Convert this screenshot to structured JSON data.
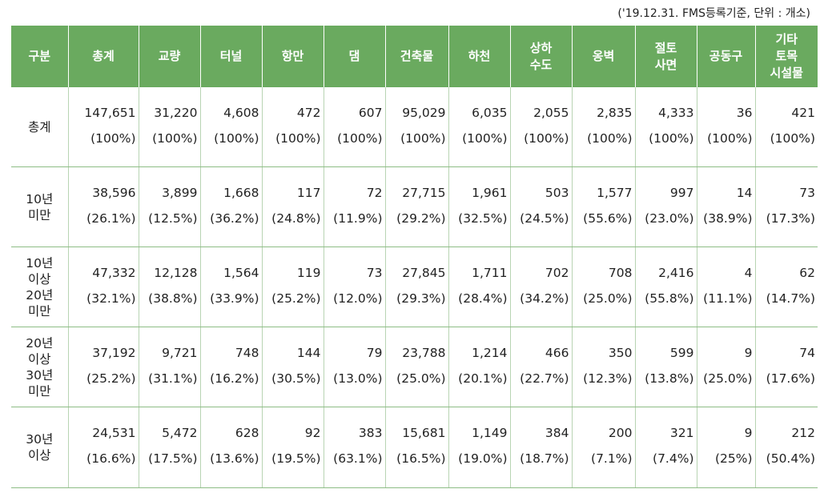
{
  "note": "('19.12.31. FMS등록기준, 단위 : 개소)",
  "headers": [
    "구분",
    "총계",
    "교량",
    "터널",
    "항만",
    "댐",
    "건축물",
    "하천",
    "상하\n수도",
    "옹벽",
    "절토\n사면",
    "공동구",
    "기타\n토목\n시설물"
  ],
  "rows": [
    {
      "label": "총계",
      "values": [
        "147,651",
        "31,220",
        "4,608",
        "472",
        "607",
        "95,029",
        "6,035",
        "2,055",
        "2,835",
        "4,333",
        "36",
        "421"
      ],
      "pcts": [
        "(100%)",
        "(100%)",
        "(100%)",
        "(100%)",
        "(100%)",
        "(100%)",
        "(100%)",
        "(100%)",
        "(100%)",
        "(100%)",
        "(100%)",
        "(100%)"
      ]
    },
    {
      "label": "10년\n미만",
      "values": [
        "38,596",
        "3,899",
        "1,668",
        "117",
        "72",
        "27,715",
        "1,961",
        "503",
        "1,577",
        "997",
        "14",
        "73"
      ],
      "pcts": [
        "(26.1%)",
        "(12.5%)",
        "(36.2%)",
        "(24.8%)",
        "(11.9%)",
        "(29.2%)",
        "(32.5%)",
        "(24.5%)",
        "(55.6%)",
        "(23.0%)",
        "(38.9%)",
        "(17.3%)"
      ]
    },
    {
      "label": "10년\n이상\n20년\n미만",
      "values": [
        "47,332",
        "12,128",
        "1,564",
        "119",
        "73",
        "27,845",
        "1,711",
        "702",
        "708",
        "2,416",
        "4",
        "62"
      ],
      "pcts": [
        "(32.1%)",
        "(38.8%)",
        "(33.9%)",
        "(25.2%)",
        "(12.0%)",
        "(29.3%)",
        "(28.4%)",
        "(34.2%)",
        "(25.0%)",
        "(55.8%)",
        "(11.1%)",
        "(14.7%)"
      ]
    },
    {
      "label": "20년\n이상\n30년\n미만",
      "values": [
        "37,192",
        "9,721",
        "748",
        "144",
        "79",
        "23,788",
        "1,214",
        "466",
        "350",
        "599",
        "9",
        "74"
      ],
      "pcts": [
        "(25.2%)",
        "(31.1%)",
        "(16.2%)",
        "(30.5%)",
        "(13.0%)",
        "(25.0%)",
        "(20.1%)",
        "(22.7%)",
        "(12.3%)",
        "(13.8%)",
        "(25.0%)",
        "(17.6%)"
      ]
    },
    {
      "label": "30년\n이상",
      "values": [
        "24,531",
        "5,472",
        "628",
        "92",
        "383",
        "15,681",
        "1,149",
        "384",
        "200",
        "321",
        "9",
        "212"
      ],
      "pcts": [
        "(16.6%)",
        "(17.5%)",
        "(13.6%)",
        "(19.5%)",
        "(63.1%)",
        "(16.5%)",
        "(19.0%)",
        "(18.7%)",
        "(7.1%)",
        "(7.4%)",
        "(25%)",
        "(50.4%)"
      ]
    }
  ],
  "colors": {
    "header_bg": "#6aaa5f",
    "header_text": "#ffffff",
    "row_border": "#8dbd85"
  }
}
